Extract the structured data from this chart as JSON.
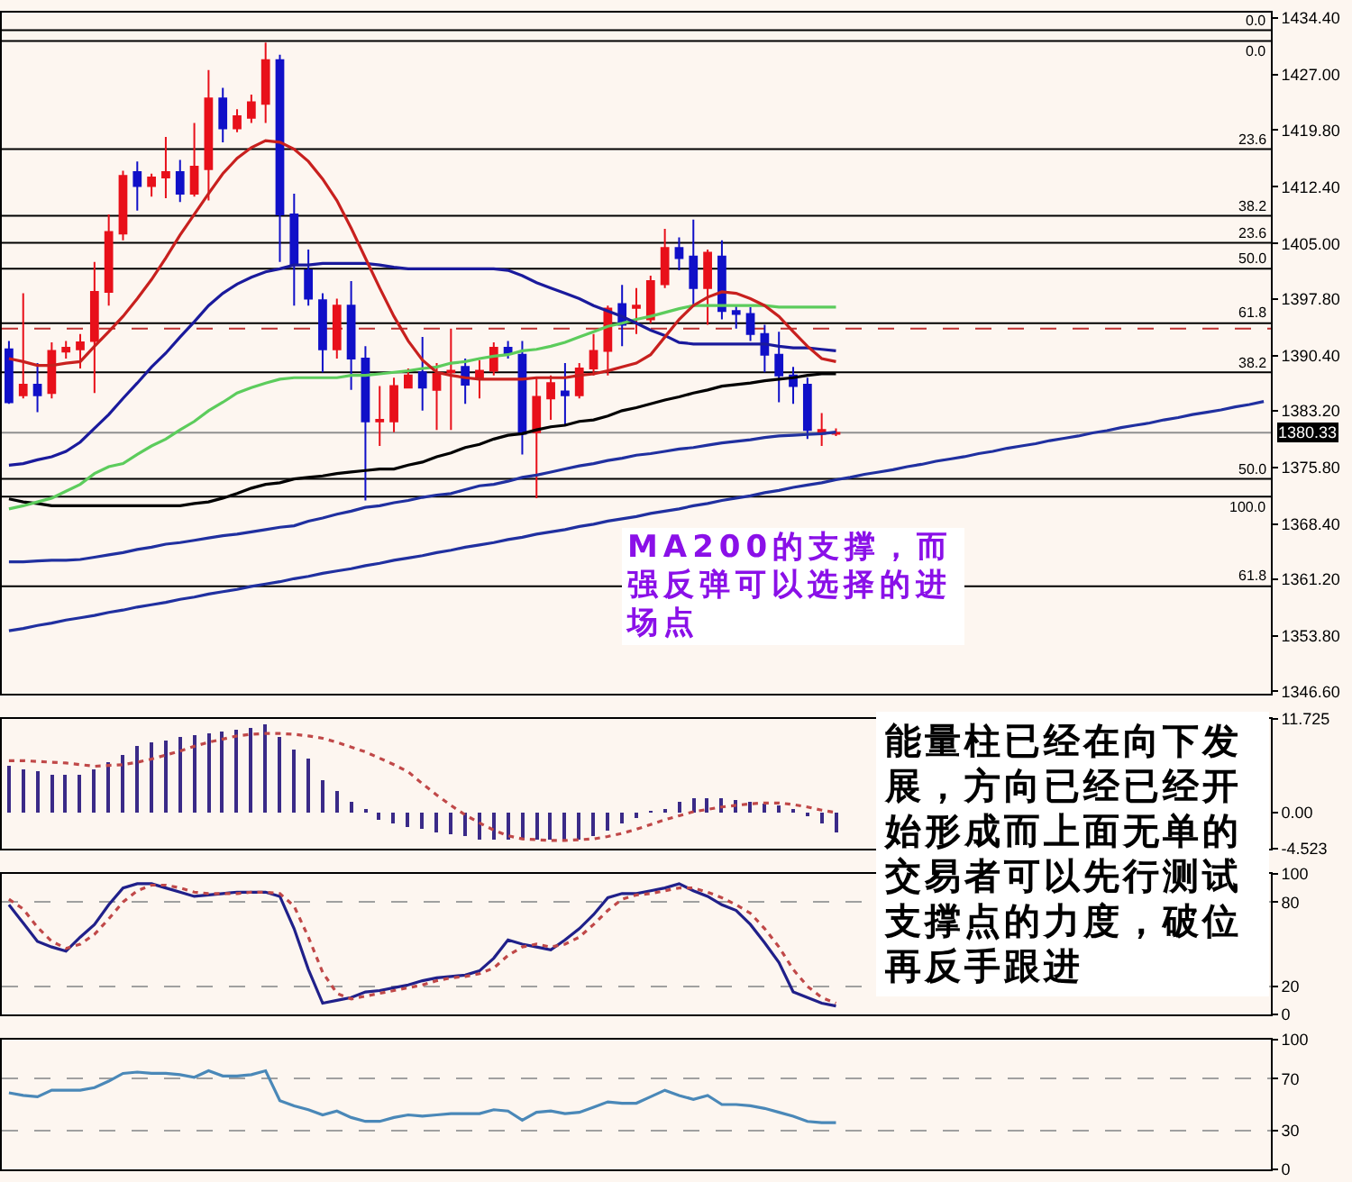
{
  "chart_data": [
    {
      "type": "candlestick",
      "tick_labels": "y",
      "categories": [
        null,
        null,
        null,
        null,
        null,
        null,
        null,
        null,
        null,
        null,
        null,
        null,
        null,
        null,
        null,
        null,
        null,
        null,
        null,
        null,
        null,
        null,
        null,
        null,
        null,
        null,
        null,
        null,
        null,
        null,
        null,
        null,
        null,
        null,
        null,
        null,
        null,
        null,
        null,
        null,
        null,
        null,
        null,
        null,
        null,
        null,
        null,
        null,
        null,
        null,
        null,
        null,
        null,
        null,
        null,
        null,
        null,
        null,
        null,
        null,
        null,
        null,
        null,
        null,
        null,
        null,
        null,
        null,
        null,
        null,
        null,
        null,
        null,
        null,
        null,
        null,
        null,
        null,
        null,
        null,
        null,
        null,
        null,
        null,
        null,
        null,
        null,
        null,
        null
      ],
      "ohlc": [
        [
          1391.2,
          1392.3,
          1384.1,
          1384.3
        ],
        [
          1385.2,
          1398.5,
          1384.8,
          1386.6
        ],
        [
          1386.6,
          1389.4,
          1383.0,
          1385.2
        ],
        [
          1385.5,
          1392.1,
          1384.8,
          1391.0
        ],
        [
          1390.9,
          1392.3,
          1390.0,
          1391.4
        ],
        [
          1391.2,
          1393.2,
          1388.7,
          1392.1
        ],
        [
          1392.3,
          1402.6,
          1385.5,
          1398.7
        ],
        [
          1398.7,
          1408.8,
          1396.9,
          1406.5
        ],
        [
          1406.3,
          1414.5,
          1405.4,
          1413.8
        ],
        [
          1414.3,
          1415.7,
          1409.3,
          1412.5
        ],
        [
          1412.5,
          1414.1,
          1411.1,
          1413.6
        ],
        [
          1413.6,
          1418.9,
          1410.9,
          1414.3
        ],
        [
          1414.3,
          1415.9,
          1410.4,
          1411.5
        ],
        [
          1411.5,
          1420.7,
          1411.1,
          1415.0
        ],
        [
          1414.7,
          1427.6,
          1410.6,
          1423.9
        ],
        [
          1423.9,
          1425.3,
          1418.2,
          1420.0
        ],
        [
          1420.0,
          1422.5,
          1419.5,
          1421.6
        ],
        [
          1421.4,
          1424.4,
          1420.7,
          1423.4
        ],
        [
          1423.2,
          1431.2,
          1420.7,
          1428.9
        ],
        [
          1428.9,
          1429.6,
          1402.6,
          1408.8
        ],
        [
          1408.8,
          1411.5,
          1396.9,
          1402.2
        ],
        [
          1401.5,
          1404.2,
          1396.9,
          1397.8
        ],
        [
          1397.6,
          1398.5,
          1388.2,
          1391.2
        ],
        [
          1391.2,
          1397.8,
          1390.0,
          1396.9
        ],
        [
          1396.9,
          1400.1,
          1385.9,
          1390.0
        ],
        [
          1390.0,
          1391.6,
          1371.5,
          1381.8
        ],
        [
          1381.8,
          1386.4,
          1378.6,
          1382.0
        ],
        [
          1381.8,
          1387.5,
          1380.4,
          1386.4
        ],
        [
          1386.2,
          1388.7,
          1386.2,
          1387.8
        ],
        [
          1388.2,
          1392.8,
          1383.2,
          1386.2
        ],
        [
          1385.9,
          1389.4,
          1380.7,
          1388.0
        ],
        [
          1388.2,
          1393.9,
          1380.7,
          1388.4
        ],
        [
          1388.9,
          1390.0,
          1384.1,
          1386.6
        ],
        [
          1387.3,
          1389.8,
          1384.8,
          1388.4
        ],
        [
          1388.4,
          1392.1,
          1387.8,
          1391.4
        ],
        [
          1391.4,
          1392.3,
          1390.0,
          1390.7
        ],
        [
          1390.5,
          1392.3,
          1377.5,
          1380.2
        ],
        [
          1380.4,
          1387.5,
          1371.8,
          1385.0
        ],
        [
          1384.8,
          1387.8,
          1382.0,
          1386.8
        ],
        [
          1385.7,
          1389.4,
          1381.4,
          1385.2
        ],
        [
          1385.2,
          1389.4,
          1384.8,
          1388.7
        ],
        [
          1388.7,
          1393.2,
          1387.8,
          1391.0
        ],
        [
          1391.0,
          1396.9,
          1387.8,
          1396.5
        ],
        [
          1397.1,
          1399.6,
          1391.6,
          1394.4
        ],
        [
          1396.6,
          1399.2,
          1393.2,
          1396.9
        ],
        [
          1395.1,
          1400.8,
          1394.6,
          1400.1
        ],
        [
          1399.7,
          1406.9,
          1399.2,
          1404.4
        ],
        [
          1404.4,
          1405.8,
          1401.5,
          1403.1
        ],
        [
          1403.3,
          1408.1,
          1396.7,
          1399.2
        ],
        [
          1399.2,
          1404.2,
          1394.4,
          1403.8
        ],
        [
          1403.3,
          1405.4,
          1395.1,
          1396.2
        ],
        [
          1396.2,
          1396.9,
          1393.9,
          1395.8
        ],
        [
          1395.8,
          1396.7,
          1392.3,
          1393.2
        ],
        [
          1393.2,
          1394.4,
          1388.2,
          1390.5
        ],
        [
          1390.5,
          1393.5,
          1384.3,
          1387.8
        ],
        [
          1387.8,
          1388.9,
          1384.1,
          1386.4
        ],
        [
          1386.6,
          1387.5,
          1379.5,
          1380.7
        ],
        [
          1380.2,
          1382.9,
          1378.6,
          1380.7
        ],
        [
          1380.2,
          1380.9,
          1379.9,
          1380.3
        ],
        null,
        null,
        null,
        null,
        null,
        null,
        null,
        null,
        null,
        null,
        null,
        null,
        null,
        null,
        null,
        null,
        null,
        null,
        null,
        null,
        null,
        null,
        null,
        null,
        null,
        null,
        null,
        null,
        null,
        null
      ],
      "colors": [
        "#1010c8",
        "#e8101a",
        "#1010c8",
        "#e8101a",
        "#e8101a",
        "#e8101a",
        "#e8101a",
        "#e8101a",
        "#e8101a",
        "#1010c8",
        "#e8101a",
        "#e8101a",
        "#1010c8",
        "#e8101a",
        "#e8101a",
        "#1010c8",
        "#e8101a",
        "#e8101a",
        "#e8101a",
        "#1010c8",
        "#1010c8",
        "#1010c8",
        "#1010c8",
        "#e8101a",
        "#1010c8",
        "#1010c8",
        "#e8101a",
        "#e8101a",
        "#e8101a",
        "#1010c8",
        "#e8101a",
        "#e8101a",
        "#1010c8",
        "#e8101a",
        "#e8101a",
        "#1010c8",
        "#1010c8",
        "#e8101a",
        "#e8101a",
        "#1010c8",
        "#e8101a",
        "#e8101a",
        "#e8101a",
        "#1010c8",
        "#e8101a",
        "#e8101a",
        "#e8101a",
        "#1010c8",
        "#1010c8",
        "#e8101a",
        "#1010c8",
        "#1010c8",
        "#1010c8",
        "#1010c8",
        "#1010c8",
        "#1010c8",
        "#1010c8",
        "#e8101a",
        "#e8101a",
        null,
        null,
        null,
        null,
        null,
        null,
        null,
        null,
        null,
        null,
        null,
        null,
        null,
        null,
        null,
        null,
        null,
        null,
        null,
        null,
        null,
        null,
        null,
        null,
        null,
        null,
        null,
        null,
        null,
        null
      ],
      "series": [
        {
          "type": "line",
          "color": "#000000",
          "values": [
            1371.7,
            1371.3,
            1371.1,
            1370.8,
            1370.8,
            1370.8,
            1370.8,
            1370.8,
            1370.8,
            1370.8,
            1370.8,
            1370.8,
            1370.8,
            1371.1,
            1371.3,
            1371.8,
            1372.4,
            1373.1,
            1373.6,
            1373.8,
            1374.3,
            1374.5,
            1374.7,
            1375.0,
            1375.2,
            1375.4,
            1375.6,
            1375.6,
            1376.1,
            1376.5,
            1377.2,
            1377.7,
            1378.4,
            1378.8,
            1379.5,
            1380.0,
            1380.2,
            1380.7,
            1381.1,
            1381.3,
            1381.8,
            1382.0,
            1382.5,
            1383.2,
            1383.6,
            1384.1,
            1384.6,
            1385.0,
            1385.5,
            1385.9,
            1386.4,
            1386.6,
            1386.8,
            1387.1,
            1387.3,
            1387.5,
            1387.8,
            1388.0,
            1388.0,
            null,
            null,
            null,
            null,
            null,
            null,
            null,
            null,
            null,
            null,
            null,
            null,
            null,
            null,
            null,
            null,
            null,
            null,
            null,
            null,
            null,
            null,
            null,
            null,
            null,
            null,
            null,
            null,
            null,
            null
          ]
        },
        {
          "type": "line",
          "color": "#5ccc5c",
          "values": [
            1370.4,
            1370.8,
            1371.3,
            1371.8,
            1372.7,
            1373.6,
            1375.0,
            1375.9,
            1376.3,
            1377.5,
            1378.6,
            1379.5,
            1380.7,
            1381.8,
            1383.2,
            1384.3,
            1385.5,
            1386.2,
            1386.8,
            1387.3,
            1387.5,
            1387.5,
            1387.5,
            1387.5,
            1387.8,
            1387.8,
            1388.0,
            1388.2,
            1388.4,
            1388.7,
            1388.9,
            1389.4,
            1389.6,
            1390.0,
            1390.3,
            1390.5,
            1391.0,
            1391.2,
            1391.6,
            1392.1,
            1392.8,
            1393.5,
            1394.2,
            1394.6,
            1395.1,
            1395.5,
            1396.0,
            1396.5,
            1396.9,
            1396.9,
            1396.9,
            1396.9,
            1396.9,
            1396.9,
            1396.7,
            1396.7,
            1396.7,
            1396.7,
            1396.7,
            null,
            null,
            null,
            null,
            null,
            null,
            null,
            null,
            null,
            null,
            null,
            null,
            null,
            null,
            null,
            null,
            null,
            null,
            null,
            null,
            null,
            null,
            null,
            null,
            null,
            null,
            null,
            null,
            null,
            null
          ]
        },
        {
          "type": "line",
          "color": "#1a1a9c",
          "values": [
            1376.1,
            1376.3,
            1376.8,
            1377.2,
            1377.9,
            1379.1,
            1380.9,
            1382.7,
            1384.8,
            1386.8,
            1388.9,
            1390.7,
            1392.8,
            1394.8,
            1396.9,
            1398.5,
            1399.7,
            1400.6,
            1401.3,
            1401.7,
            1402.2,
            1402.2,
            1402.4,
            1402.4,
            1402.4,
            1402.4,
            1402.2,
            1401.9,
            1401.7,
            1401.7,
            1401.7,
            1401.7,
            1401.7,
            1401.7,
            1401.7,
            1401.5,
            1400.8,
            1399.9,
            1399.2,
            1398.5,
            1397.8,
            1396.9,
            1396.2,
            1395.5,
            1394.6,
            1393.7,
            1393.0,
            1392.1,
            1391.9,
            1391.9,
            1391.9,
            1391.9,
            1391.9,
            1391.9,
            1391.6,
            1391.4,
            1391.4,
            1391.2,
            1391.0,
            null,
            null,
            null,
            null,
            null,
            null,
            null,
            null,
            null,
            null,
            null,
            null,
            null,
            null,
            null,
            null,
            null,
            null,
            null,
            null,
            null,
            null,
            null,
            null,
            null,
            null,
            null,
            null,
            null,
            null
          ]
        },
        {
          "type": "line",
          "color": "#2030a0",
          "values": [
            1363.5,
            1363.5,
            1363.6,
            1363.7,
            1363.7,
            1363.8,
            1364.1,
            1364.4,
            1364.7,
            1365.1,
            1365.4,
            1365.8,
            1366.0,
            1366.3,
            1366.6,
            1366.9,
            1367.1,
            1367.4,
            1367.7,
            1368.0,
            1368.2,
            1368.8,
            1369.2,
            1369.7,
            1370.1,
            1370.6,
            1370.8,
            1371.2,
            1371.5,
            1371.9,
            1372.2,
            1372.4,
            1372.9,
            1373.4,
            1373.6,
            1374.0,
            1374.5,
            1374.8,
            1375.2,
            1375.6,
            1376.0,
            1376.3,
            1376.7,
            1377.0,
            1377.4,
            1377.6,
            1377.9,
            1378.2,
            1378.4,
            1378.7,
            1379.0,
            1379.2,
            1379.4,
            1379.7,
            1379.9,
            1380.0,
            1380.1,
            1380.2,
            1380.4,
            null,
            null,
            null,
            null,
            null,
            null,
            null,
            null,
            null,
            null,
            null,
            null,
            null,
            null,
            null,
            null,
            null,
            null,
            null,
            null,
            null,
            null,
            null,
            null,
            null,
            null,
            null,
            null,
            null,
            null
          ]
        },
        {
          "type": "line",
          "color": "#c8201e",
          "values": [
            1390.0,
            1389.6,
            1389.1,
            1389.1,
            1389.4,
            1389.6,
            1391.6,
            1393.5,
            1395.5,
            1397.8,
            1400.3,
            1403.1,
            1406.1,
            1408.8,
            1411.5,
            1414.1,
            1416.1,
            1417.5,
            1418.4,
            1418.2,
            1417.3,
            1415.7,
            1413.4,
            1410.6,
            1407.0,
            1403.1,
            1399.2,
            1395.5,
            1392.3,
            1389.8,
            1388.2,
            1387.8,
            1387.5,
            1387.3,
            1387.3,
            1387.3,
            1387.3,
            1387.5,
            1387.5,
            1387.5,
            1387.8,
            1388.0,
            1388.4,
            1388.9,
            1389.4,
            1390.5,
            1392.8,
            1395.1,
            1396.9,
            1398.0,
            1398.7,
            1398.5,
            1397.8,
            1396.9,
            1395.5,
            1393.5,
            1391.6,
            1390.0,
            1389.6,
            null,
            null,
            null,
            null,
            null,
            null,
            null,
            null,
            null,
            null,
            null,
            null,
            null,
            null,
            null,
            null,
            null,
            null,
            null,
            null,
            null,
            null,
            null,
            null,
            null,
            null,
            null,
            null,
            null,
            null
          ]
        },
        {
          "type": "line",
          "color": "#2030a0",
          "values": [
            1354.5,
            1354.8,
            1355.2,
            1355.5,
            1355.9,
            1356.2,
            1356.5,
            1356.9,
            1357.2,
            1357.6,
            1357.9,
            1358.2,
            1358.6,
            1358.9,
            1359.3,
            1359.6,
            1359.9,
            1360.3,
            1360.6,
            1360.9,
            1361.3,
            1361.6,
            1362.0,
            1362.3,
            1362.6,
            1363.0,
            1363.3,
            1363.7,
            1364.0,
            1364.3,
            1364.7,
            1365.0,
            1365.4,
            1365.7,
            1366.0,
            1366.4,
            1366.7,
            1367.1,
            1367.4,
            1367.7,
            1368.1,
            1368.4,
            1368.8,
            1369.1,
            1369.4,
            1369.8,
            1370.1,
            1370.4,
            1370.8,
            1371.1,
            1371.5,
            1371.8,
            1372.1,
            1372.5,
            1372.8,
            1373.2,
            1373.5,
            1373.8,
            1374.2,
            1374.5,
            1374.9,
            1375.2,
            1375.5,
            1375.9,
            1376.2,
            1376.6,
            1376.9,
            1377.2,
            1377.6,
            1377.9,
            1378.3,
            1378.6,
            1378.9,
            1379.3,
            1379.6,
            1379.9,
            1380.3,
            1380.6,
            1381.0,
            1381.3,
            1381.6,
            1382.0,
            1382.3,
            1382.7,
            1383.0,
            1383.3,
            1383.7,
            1384.0,
            1384.4
          ]
        }
      ],
      "ylim": [
        1346.3,
        1435.1
      ],
      "yticks": [
        {
          "value": 1434.4,
          "label": "1434.40"
        },
        {
          "value": 1427,
          "label": "1427.00"
        },
        {
          "value": 1419.8,
          "label": "1419.80"
        },
        {
          "value": 1412.4,
          "label": "1412.40"
        },
        {
          "value": 1405,
          "label": "1405.00"
        },
        {
          "value": 1397.8,
          "label": "1397.80"
        },
        {
          "value": 1390.4,
          "label": "1390.40"
        },
        {
          "value": 1383.2,
          "label": "1383.20"
        },
        {
          "value": 1375.8,
          "label": "1375.80"
        },
        {
          "value": 1368.4,
          "label": "1368.40"
        },
        {
          "value": 1361.2,
          "label": "1361.20"
        },
        {
          "value": 1353.8,
          "label": "1353.80"
        },
        {
          "value": 1346.6,
          "label": "1346.60"
        }
      ],
      "ref_lines": [
        {
          "axis": "y",
          "value": 1432.8
        },
        {
          "axis": "y",
          "value": 1431.4
        },
        {
          "axis": "y",
          "value": 1417.3
        },
        {
          "axis": "y",
          "value": 1408.6
        },
        {
          "axis": "y",
          "value": 1405.1
        },
        {
          "axis": "y",
          "value": 1401.7
        },
        {
          "axis": "y",
          "value": 1394.6
        },
        {
          "axis": "y",
          "value": 1393.9,
          "color": "#c03030",
          "line_style": "dashed"
        },
        {
          "axis": "y",
          "value": 1388.2
        },
        {
          "axis": "y",
          "value": 1380.33,
          "label": "1380.33",
          "color": "#909090"
        },
        {
          "axis": "y",
          "value": 1374.3
        },
        {
          "axis": "y",
          "value": 1372.0
        },
        {
          "axis": "y",
          "value": 1360.3
        }
      ],
      "annotations": [
        {
          "text": "0.0",
          "y": 1432.8
        },
        {
          "text": "0.0",
          "y": 1431.4
        },
        {
          "text": "23.6",
          "y": 1417.3
        },
        {
          "text": "38.2",
          "y": 1408.6
        },
        {
          "text": "23.6",
          "y": 1405.1
        },
        {
          "text": "50.0",
          "y": 1401.7
        },
        {
          "text": "61.8",
          "y": 1394.6
        },
        {
          "text": "38.2",
          "y": 1388.2
        },
        {
          "text": "50.0",
          "y": 1374.3
        },
        {
          "text": "100.0",
          "y": 1372.0
        },
        {
          "text": "61.8",
          "y": 1360.3
        },
        "MA200的支撑，而强反弹可以选择的进场点"
      ]
    },
    {
      "type": "bar",
      "tick_labels": "y",
      "categories": [
        null,
        null,
        null,
        null,
        null,
        null,
        null,
        null,
        null,
        null,
        null,
        null,
        null,
        null,
        null,
        null,
        null,
        null,
        null,
        null,
        null,
        null,
        null,
        null,
        null,
        null,
        null,
        null,
        null,
        null,
        null,
        null,
        null,
        null,
        null,
        null,
        null,
        null,
        null,
        null,
        null,
        null,
        null,
        null,
        null,
        null,
        null,
        null,
        null,
        null,
        null,
        null,
        null,
        null,
        null,
        null,
        null,
        null,
        null
      ],
      "series": [
        {
          "type": "bar",
          "color": "#3a2a88",
          "values": [
            5.8,
            5.3,
            5.1,
            4.8,
            4.8,
            4.8,
            5.3,
            6.2,
            7.2,
            8.4,
            8.8,
            9.1,
            9.5,
            9.8,
            9.9,
            10.2,
            10.4,
            10.7,
            11.0,
            9.5,
            7.9,
            6.8,
            4.0,
            2.8,
            1.4,
            0.3,
            -0.9,
            -1.4,
            -1.9,
            -2.1,
            -2.5,
            -2.8,
            -3.0,
            -3.3,
            -3.3,
            -3.4,
            -3.5,
            -3.5,
            -3.5,
            -3.4,
            -3.3,
            -3.0,
            -2.3,
            -1.4,
            -0.7,
            0.1,
            0.5,
            1.4,
            1.7,
            1.9,
            1.9,
            1.6,
            1.4,
            1.1,
            0.9,
            0.3,
            -0.5,
            -1.4,
            -2.6
          ]
        },
        {
          "type": "line",
          "color": "#c04848",
          "line_style": "dotted",
          "values": [
            6.5,
            6.5,
            6.4,
            6.3,
            6.2,
            6.0,
            5.8,
            5.9,
            6.0,
            6.3,
            6.7,
            7.2,
            7.7,
            8.3,
            8.8,
            9.2,
            9.6,
            9.8,
            9.9,
            9.9,
            9.8,
            9.6,
            9.3,
            8.8,
            8.2,
            7.6,
            6.8,
            6.0,
            5.1,
            3.6,
            2.2,
            0.9,
            -0.3,
            -1.3,
            -2.2,
            -2.9,
            -3.3,
            -3.4,
            -3.5,
            -3.5,
            -3.4,
            -3.3,
            -3.0,
            -2.6,
            -2.1,
            -1.5,
            -0.9,
            -0.4,
            0.1,
            0.4,
            0.7,
            0.9,
            1.1,
            1.2,
            1.2,
            1.0,
            0.7,
            0.3,
            0.0
          ]
        }
      ],
      "ylim": [
        -4.523,
        11.725
      ],
      "yticks": [
        11.725,
        {
          "value": 0,
          "label": "0.00"
        },
        -4.523
      ],
      "annotations": [
        "能量柱已经在向下发展，方向已经已经开始形成而上面无单的交易者可以先行测试支撑点的力度，破位再反手跟进"
      ]
    },
    {
      "type": "line",
      "tick_labels": "y",
      "grid": "y",
      "categories": [
        null,
        null,
        null,
        null,
        null,
        null,
        null,
        null,
        null,
        null,
        null,
        null,
        null,
        null,
        null,
        null,
        null,
        null,
        null,
        null,
        null,
        null,
        null,
        null,
        null,
        null,
        null,
        null,
        null,
        null,
        null,
        null,
        null,
        null,
        null,
        null,
        null,
        null,
        null,
        null,
        null,
        null,
        null,
        null,
        null,
        null,
        null,
        null,
        null,
        null,
        null,
        null,
        null,
        null,
        null,
        null,
        null,
        null,
        null
      ],
      "series": [
        {
          "color": "#20208a",
          "values": [
            78,
            65,
            52,
            48,
            45,
            55,
            64,
            78,
            90,
            93,
            93,
            90,
            87,
            84,
            85,
            86,
            87,
            87,
            87,
            84,
            61,
            32,
            8,
            10,
            12,
            16,
            17,
            19,
            21,
            24,
            26,
            27,
            28,
            31,
            40,
            53,
            50,
            48,
            46,
            53,
            61,
            71,
            83,
            86,
            86,
            88,
            90,
            93,
            88,
            84,
            78,
            74,
            64,
            51,
            37,
            16,
            12,
            8,
            6
          ]
        },
        {
          "color": "#c04848",
          "line_style": "dotted",
          "values": [
            82,
            75,
            62,
            52,
            47,
            50,
            57,
            68,
            80,
            88,
            92,
            92,
            90,
            87,
            86,
            86,
            86,
            87,
            87,
            86,
            77,
            55,
            30,
            15,
            11,
            13,
            15,
            17,
            19,
            21,
            24,
            26,
            27,
            29,
            33,
            42,
            48,
            50,
            48,
            50,
            55,
            64,
            74,
            82,
            85,
            86,
            88,
            90,
            90,
            87,
            83,
            78,
            72,
            61,
            48,
            32,
            20,
            12,
            8
          ]
        }
      ],
      "ylim": [
        0,
        100
      ],
      "yticks": [
        100,
        80,
        20,
        0
      ]
    },
    {
      "type": "line",
      "tick_labels": "y",
      "grid": "y",
      "categories": [
        null,
        null,
        null,
        null,
        null,
        null,
        null,
        null,
        null,
        null,
        null,
        null,
        null,
        null,
        null,
        null,
        null,
        null,
        null,
        null,
        null,
        null,
        null,
        null,
        null,
        null,
        null,
        null,
        null,
        null,
        null,
        null,
        null,
        null,
        null,
        null,
        null,
        null,
        null,
        null,
        null,
        null,
        null,
        null,
        null,
        null,
        null,
        null,
        null,
        null,
        null,
        null,
        null,
        null,
        null,
        null,
        null,
        null,
        null
      ],
      "series": [
        {
          "color": "#4a88b8",
          "values": [
            59,
            57,
            56,
            61,
            61,
            61,
            63,
            68,
            74,
            75,
            74,
            74,
            73,
            71,
            76,
            72,
            72,
            73,
            76,
            53,
            49,
            46,
            42,
            45,
            40,
            37,
            37,
            40,
            42,
            41,
            42,
            43,
            43,
            43,
            46,
            45,
            38,
            44,
            45,
            43,
            44,
            48,
            52,
            51,
            51,
            56,
            61,
            57,
            54,
            57,
            50,
            50,
            49,
            47,
            44,
            41,
            37,
            36,
            36
          ]
        }
      ],
      "ylim": [
        0,
        100
      ],
      "yticks": [
        100,
        70,
        30,
        0
      ]
    }
  ]
}
